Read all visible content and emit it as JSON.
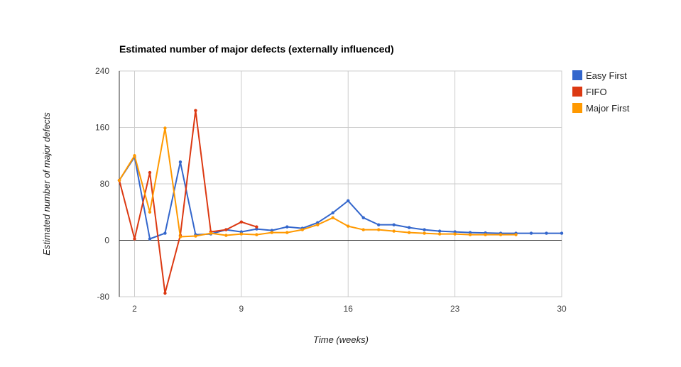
{
  "chart_data": {
    "type": "line",
    "title": "Estimated number of major defects (externally influenced)",
    "xlabel": "Time (weeks)",
    "ylabel": "Estimated number of major defects",
    "xlim": [
      1,
      30
    ],
    "ylim": [
      -80,
      240
    ],
    "x_ticks": [
      2,
      9,
      16,
      23,
      30
    ],
    "y_ticks": [
      -80,
      0,
      80,
      160,
      240
    ],
    "grid": true,
    "legend": "right",
    "series": [
      {
        "name": "Easy First",
        "color": "#3366cc",
        "x": [
          1,
          2,
          3,
          4,
          5,
          6,
          7,
          8,
          9,
          10,
          11,
          12,
          13,
          14,
          15,
          16,
          17,
          18,
          19,
          20,
          21,
          22,
          23,
          24,
          25,
          26,
          27,
          28,
          29,
          30
        ],
        "y": [
          85,
          118,
          2,
          10,
          111,
          8,
          9,
          15,
          12,
          16,
          14,
          19,
          17,
          25,
          39,
          56,
          32,
          22,
          22,
          18,
          15,
          13,
          12,
          11,
          10.5,
          10,
          10,
          10,
          10,
          10
        ]
      },
      {
        "name": "FIFO",
        "color": "#dc3912",
        "x": [
          1,
          2,
          3,
          4,
          5,
          6,
          7,
          8,
          9,
          10
        ],
        "y": [
          85,
          2,
          96,
          -75,
          7,
          184,
          12,
          15,
          26,
          19
        ]
      },
      {
        "name": "Major First",
        "color": "#ff9900",
        "x": [
          1,
          2,
          3,
          4,
          5,
          6,
          7,
          8,
          9,
          10,
          11,
          12,
          13,
          14,
          15,
          16,
          17,
          18,
          19,
          20,
          21,
          22,
          23,
          24,
          25,
          26,
          27
        ],
        "y": [
          85,
          120,
          40,
          159,
          5,
          6,
          10,
          7,
          9,
          8,
          11,
          11,
          15,
          22,
          32,
          20,
          15,
          15,
          13,
          11,
          10,
          9,
          9,
          8,
          8,
          8,
          8
        ]
      }
    ]
  }
}
